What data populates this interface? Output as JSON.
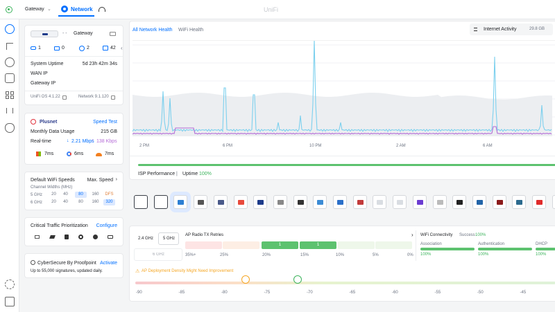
{
  "topbar": {
    "site_selector": "Gateway",
    "app_name": "Network",
    "brand": "UniFi"
  },
  "gateway_card": {
    "device_name": "Gateway",
    "counts": {
      "wired": "1",
      "switch": "0",
      "wifi": "2",
      "clients": "42"
    },
    "uptime_label": "System Uptime",
    "uptime_value": "5d 23h 42m 34s",
    "wan_ip_label": "WAN IP",
    "gateway_ip_label": "Gateway IP",
    "os_version": "UniFi OS 4.1.22",
    "network_version": "Network 9.1.120"
  },
  "isp_card": {
    "isp_name": "Plusnet",
    "speed_test_label": "Speed Test",
    "monthly_label": "Monthly Data Usage",
    "monthly_value": "215 GB",
    "realtime_label": "Real-time",
    "download": "2.21 Mbps",
    "upload": "138 Kbps",
    "latencies": [
      {
        "service": "microsoft-icon",
        "value": "7ms"
      },
      {
        "service": "google-icon",
        "value": "6ms"
      },
      {
        "service": "cloudflare-icon",
        "value": "7ms"
      }
    ]
  },
  "wifi_speeds": {
    "title": "Default WiFi Speeds",
    "max_label": "Max. Speed",
    "channel_label": "Channel Widths (MHz)",
    "rows": [
      {
        "band": "5 GHz",
        "widths": [
          "20",
          "40",
          "80",
          "160",
          "DFS"
        ],
        "selected": 2
      },
      {
        "band": "6 GHz",
        "widths": [
          "20",
          "40",
          "80",
          "160",
          "320"
        ],
        "selected": 4
      }
    ]
  },
  "traffic": {
    "title": "Critical Traffic Prioritization",
    "configure_label": "Configure"
  },
  "cybersecure": {
    "title": "CyberSecure By Proofpoint",
    "activate_label": "Activate",
    "subtitle": "Up to 55,000 signatures, updated daily."
  },
  "main": {
    "tabs": [
      "All Network Health",
      "WiFi Health"
    ],
    "active_tab": 0,
    "activity_select": "Internet Activity",
    "activity_total": "29.8 GB",
    "x_ticks": [
      "2 PM",
      "6 PM",
      "10 PM",
      "2 AM",
      "6 AM"
    ],
    "isp_label": "ISP Performance",
    "uptime_label": "Uptime",
    "uptime_value": "100%",
    "colors": {
      "download": "#7cd0ee",
      "upload": "#b56cd7",
      "accent": "#006fff",
      "good": "#5dc26f"
    }
  },
  "radio": {
    "bands": [
      "2.4 GHz",
      "5 GHz",
      "6 GHz"
    ],
    "active_band": 1,
    "tx_title": "AP Radio TX Retries",
    "tx_values": [
      "",
      "",
      "1",
      "1",
      "",
      ""
    ],
    "tx_labels": [
      "35%+",
      "25%",
      "20%",
      "15%",
      "10%",
      "5%",
      "0%"
    ],
    "connectivity_title": "WiFi Connectivity",
    "success_label": "Success",
    "success_value": "100%",
    "stages": [
      {
        "name": "Association",
        "value": "100%"
      },
      {
        "name": "Authentication",
        "value": "100%"
      },
      {
        "name": "DHCP",
        "value": "100%"
      }
    ],
    "warning": "AP Deployment Density Might Need Improvement",
    "rssi_ticks": [
      "-90",
      "-85",
      "-80",
      "-75",
      "-70",
      "-65",
      "-60",
      "-55",
      "-50",
      "-45"
    ]
  }
}
